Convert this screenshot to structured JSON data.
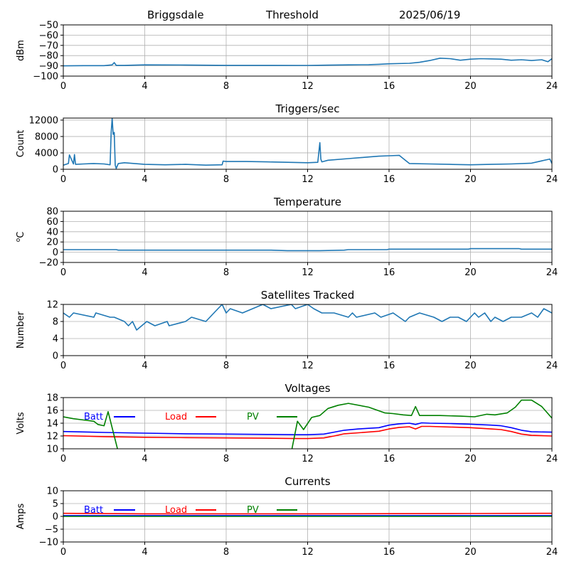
{
  "header": {
    "site": "Briggsdale",
    "mode": "Threshold",
    "date": "2025/06/19"
  },
  "chart_data": [
    {
      "type": "line",
      "title": "",
      "ylabel": "dBm",
      "xlim": [
        0,
        24
      ],
      "ylim": [
        -100,
        -50
      ],
      "xticks": [
        0,
        4,
        8,
        12,
        16,
        20,
        24
      ],
      "yticks": [
        -100,
        -90,
        -80,
        -70,
        -60,
        -50
      ],
      "ytick_labels": [
        "−100",
        "−90",
        "−80",
        "−70",
        "−60",
        "−50"
      ],
      "grid": true,
      "series": [
        {
          "color": "#1f77b4",
          "x": [
            0,
            1,
            2,
            2.4,
            2.5,
            2.6,
            3,
            4,
            6,
            8,
            10,
            12,
            13,
            14,
            15,
            15.5,
            16,
            17,
            17.5,
            18,
            18.5,
            19,
            19.5,
            20,
            20.5,
            21,
            21.5,
            22,
            22.5,
            23,
            23.5,
            23.8,
            24
          ],
          "y": [
            -90,
            -89.8,
            -89.8,
            -89,
            -86.8,
            -89.5,
            -89.5,
            -89,
            -89.2,
            -89.5,
            -89.5,
            -89.6,
            -89.3,
            -89,
            -88.8,
            -88.5,
            -88,
            -87.5,
            -86.5,
            -84.8,
            -82.5,
            -83,
            -84.5,
            -83.5,
            -83,
            -83.2,
            -83.5,
            -84.5,
            -84,
            -84.8,
            -84,
            -86,
            -83
          ]
        }
      ]
    },
    {
      "type": "line",
      "title": "Triggers/sec",
      "ylabel": "Count",
      "xlim": [
        0,
        24
      ],
      "ylim": [
        0,
        12500
      ],
      "xticks": [
        0,
        4,
        8,
        12,
        16,
        20,
        24
      ],
      "yticks": [
        0,
        4000,
        8000,
        12000
      ],
      "ytick_labels": [
        "0",
        "4000",
        "8000",
        "12000"
      ],
      "grid": true,
      "series": [
        {
          "color": "#1f77b4",
          "x": [
            0,
            0.25,
            0.3,
            0.5,
            0.55,
            0.6,
            1,
            1.5,
            2,
            2.3,
            2.35,
            2.4,
            2.45,
            2.5,
            2.55,
            2.6,
            2.7,
            3,
            4,
            5,
            6,
            7,
            7.8,
            7.85,
            8,
            9,
            10,
            11,
            12,
            12.5,
            12.6,
            12.65,
            12.7,
            13,
            14,
            15,
            15.5,
            16,
            16.5,
            16.7,
            17,
            18,
            19,
            20,
            21,
            22,
            23,
            23.9,
            24
          ],
          "y": [
            1000,
            1400,
            3500,
            1300,
            3600,
            1200,
            1300,
            1400,
            1300,
            1100,
            9000,
            12500,
            8500,
            9000,
            1000,
            200,
            1400,
            1600,
            1200,
            1100,
            1200,
            1000,
            1100,
            2000,
            1900,
            1900,
            1800,
            1700,
            1600,
            1700,
            6500,
            2500,
            1800,
            2200,
            2600,
            3000,
            3200,
            3300,
            3400,
            2600,
            1400,
            1300,
            1200,
            1100,
            1200,
            1300,
            1500,
            2500,
            1400
          ]
        }
      ]
    },
    {
      "type": "line",
      "title": "Temperature",
      "ylabel": "°C",
      "ylabel_parts": [
        "o",
        "C"
      ],
      "xlim": [
        0,
        24
      ],
      "ylim": [
        -20,
        80
      ],
      "xticks": [
        0,
        4,
        8,
        12,
        16,
        20,
        24
      ],
      "yticks": [
        -20,
        0,
        20,
        40,
        60,
        80
      ],
      "ytick_labels": [
        "−20",
        "0",
        "20",
        "40",
        "60",
        "80"
      ],
      "grid": true,
      "series": [
        {
          "color": "#1f77b4",
          "x": [
            0,
            2.6,
            2.7,
            6,
            9,
            10.2,
            11,
            12,
            12.6,
            13.8,
            14,
            15.9,
            16,
            19.9,
            20,
            22.4,
            22.5,
            24
          ],
          "y": [
            5,
            5,
            4,
            4,
            4,
            4,
            3,
            3,
            3,
            4,
            5,
            5,
            6,
            6,
            7,
            7,
            6,
            6
          ]
        }
      ]
    },
    {
      "type": "line",
      "title": "Satellites Tracked",
      "ylabel": "Number",
      "xlim": [
        0,
        24
      ],
      "ylim": [
        0,
        12
      ],
      "xticks": [
        0,
        4,
        8,
        12,
        16,
        20,
        24
      ],
      "yticks": [
        0,
        4,
        8,
        12
      ],
      "ytick_labels": [
        "0",
        "4",
        "8",
        "12"
      ],
      "grid": true,
      "series": [
        {
          "color": "#1f77b4",
          "x": [
            0,
            0.3,
            0.5,
            1.5,
            1.6,
            2.3,
            2.5,
            3.0,
            3.2,
            3.4,
            3.6,
            4.1,
            4.5,
            5.1,
            5.2,
            6.0,
            6.3,
            7.0,
            7.2,
            7.6,
            7.8,
            8.0,
            8.2,
            8.8,
            9.3,
            9.8,
            10.2,
            11.2,
            11.4,
            12.0,
            12.3,
            12.7,
            13.3,
            14.0,
            14.2,
            14.4,
            15.3,
            15.6,
            16.2,
            16.5,
            16.8,
            17.0,
            17.5,
            18.2,
            18.6,
            19.0,
            19.4,
            19.8,
            20.2,
            20.4,
            20.7,
            21.0,
            21.2,
            21.6,
            22.0,
            22.5,
            23.0,
            23.3,
            23.6,
            24
          ],
          "y": [
            10,
            9,
            10,
            9,
            10,
            9,
            9,
            8,
            7,
            8,
            6,
            8,
            7,
            8,
            7,
            8,
            9,
            8,
            9,
            11,
            12,
            10,
            11,
            10,
            11,
            12,
            11,
            12,
            11,
            12,
            11,
            10,
            10,
            9,
            10,
            9,
            10,
            9,
            10,
            9,
            8,
            9,
            10,
            9,
            8,
            9,
            9,
            8,
            10,
            9,
            10,
            8,
            9,
            8,
            9,
            9,
            10,
            9,
            11,
            10
          ]
        }
      ]
    },
    {
      "type": "line",
      "title": "Voltages",
      "ylabel": "Volts",
      "xlim": [
        0,
        24
      ],
      "ylim": [
        10,
        18
      ],
      "xticks": [
        0,
        4,
        8,
        12,
        16,
        20,
        24
      ],
      "yticks": [
        10,
        12,
        14,
        16,
        18
      ],
      "ytick_labels": [
        "10",
        "12",
        "14",
        "16",
        "18"
      ],
      "grid": true,
      "legend_placement": "top",
      "series": [
        {
          "name": "Batt",
          "color": "#0000ff",
          "x": [
            0,
            2,
            4,
            6,
            8,
            10,
            11.5,
            12,
            12.8,
            13.3,
            13.8,
            14.5,
            15.5,
            16,
            16.5,
            17,
            17.3,
            17.6,
            18,
            19,
            20,
            21,
            21.5,
            22,
            22.5,
            23,
            24
          ],
          "y": [
            12.7,
            12.55,
            12.45,
            12.35,
            12.3,
            12.25,
            12.2,
            12.2,
            12.3,
            12.6,
            12.9,
            13.1,
            13.3,
            13.7,
            13.9,
            14.0,
            13.8,
            14.05,
            14.0,
            13.95,
            13.85,
            13.7,
            13.6,
            13.3,
            12.9,
            12.65,
            12.6
          ]
        },
        {
          "name": "Load",
          "color": "#ff0000",
          "x": [
            0,
            2,
            4,
            6,
            8,
            10,
            11.5,
            12,
            12.8,
            13.3,
            13.8,
            14.5,
            15.5,
            16,
            16.5,
            17,
            17.3,
            17.6,
            18,
            19,
            20,
            21,
            21.5,
            22,
            22.5,
            23,
            24
          ],
          "y": [
            12.05,
            11.9,
            11.8,
            11.75,
            11.7,
            11.65,
            11.6,
            11.6,
            11.7,
            12.0,
            12.35,
            12.5,
            12.75,
            13.1,
            13.35,
            13.45,
            13.1,
            13.5,
            13.5,
            13.4,
            13.3,
            13.1,
            13.0,
            12.7,
            12.3,
            12.1,
            12.0
          ]
        },
        {
          "name": "PV",
          "color": "#008000",
          "x": [
            0,
            0.5,
            1,
            1.5,
            1.7,
            2.0,
            2.2,
            2.5,
            2.7,
            11.2,
            11.5,
            11.8,
            12.2,
            12.6,
            13.0,
            13.5,
            14,
            15,
            15.8,
            16.2,
            16.7,
            17.1,
            17.3,
            17.5,
            18.5,
            19.5,
            20.2,
            20.8,
            21.2,
            21.8,
            22.2,
            22.5,
            23,
            23.5,
            24
          ],
          "y": [
            15.0,
            14.7,
            14.5,
            14.3,
            13.8,
            13.6,
            15.8,
            12.0,
            9.5,
            9.5,
            14.3,
            13.0,
            14.9,
            15.2,
            16.3,
            16.8,
            17.1,
            16.5,
            15.6,
            15.5,
            15.3,
            15.2,
            16.6,
            15.2,
            15.2,
            15.1,
            15.0,
            15.4,
            15.3,
            15.6,
            16.5,
            17.6,
            17.6,
            16.6,
            14.8
          ]
        }
      ]
    },
    {
      "type": "line",
      "title": "Currents",
      "ylabel": "Amps",
      "xlim": [
        0,
        24
      ],
      "ylim": [
        -10,
        10
      ],
      "xticks": [
        0,
        4,
        8,
        12,
        16,
        20,
        24
      ],
      "yticks": [
        -10,
        -5,
        0,
        5,
        10
      ],
      "ytick_labels": [
        "−10",
        "−5",
        "0",
        "5",
        "10"
      ],
      "grid": true,
      "legend_placement": "top",
      "series": [
        {
          "name": "Batt",
          "color": "#0000ff",
          "x": [
            0,
            24
          ],
          "y": [
            0.3,
            0.3
          ]
        },
        {
          "name": "Load",
          "color": "#ff0000",
          "x": [
            0,
            4,
            8,
            12,
            16,
            20,
            24
          ],
          "y": [
            1.2,
            1.0,
            1.0,
            1.0,
            1.05,
            1.1,
            1.2
          ]
        },
        {
          "name": "PV",
          "color": "#008000",
          "x": [
            0,
            24
          ],
          "y": [
            0.0,
            0.0
          ]
        }
      ]
    }
  ]
}
